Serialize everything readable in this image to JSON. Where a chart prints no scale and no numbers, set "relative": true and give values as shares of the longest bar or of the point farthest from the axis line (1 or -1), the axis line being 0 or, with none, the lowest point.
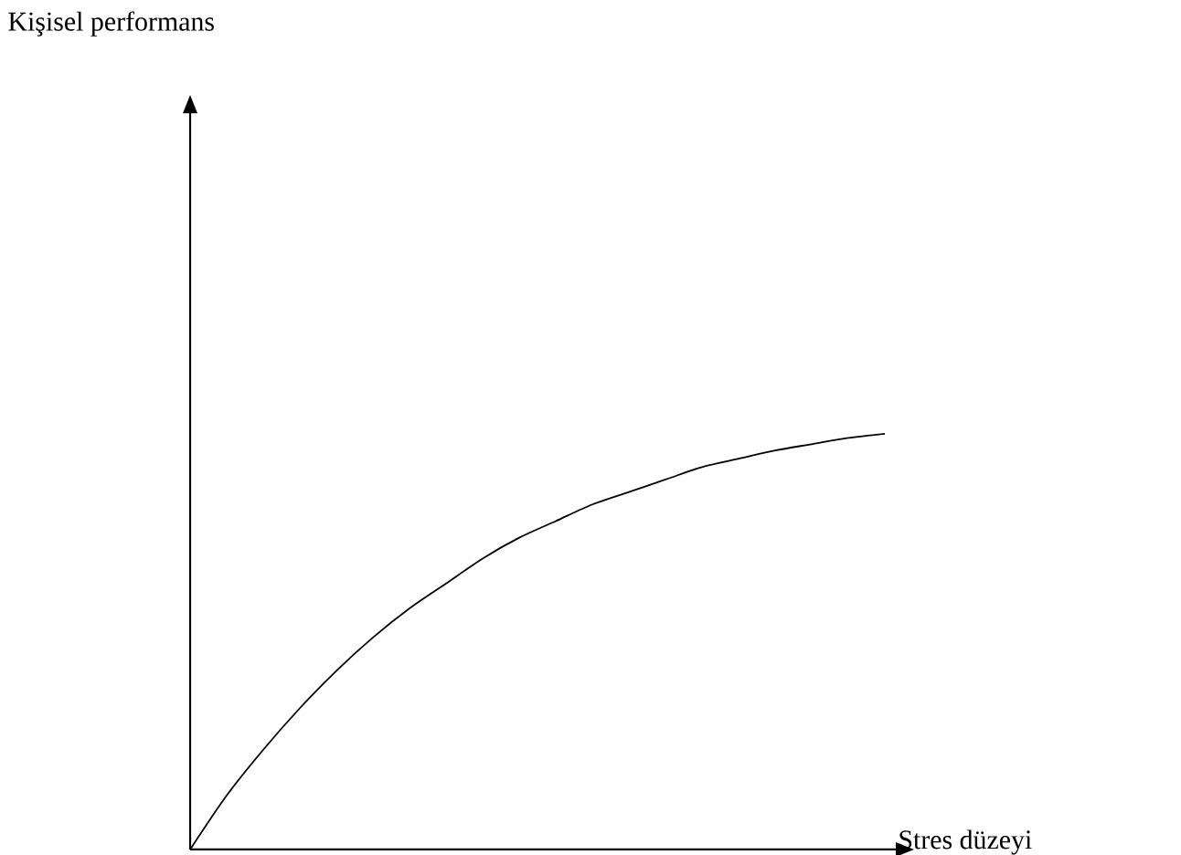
{
  "chart_data": {
    "type": "line",
    "relative": true,
    "xlabel": "Stres düzeyi",
    "annotations": [
      "Kişisel performans"
    ],
    "categories": [
      null,
      null,
      null,
      null,
      null,
      null,
      null,
      null,
      null,
      null,
      null,
      null,
      null,
      null,
      null,
      null,
      null,
      null,
      null,
      null
    ],
    "series": [
      {
        "color": "#000000",
        "values": [
          0,
          0.13,
          0.24,
          0.34,
          0.43,
          0.51,
          0.58,
          0.64,
          0.7,
          0.75,
          0.79,
          0.83,
          0.86,
          0.89,
          0.92,
          0.94,
          0.96,
          0.975,
          0.99,
          1
        ]
      }
    ],
    "marker": "none",
    "line_style": "solid"
  }
}
